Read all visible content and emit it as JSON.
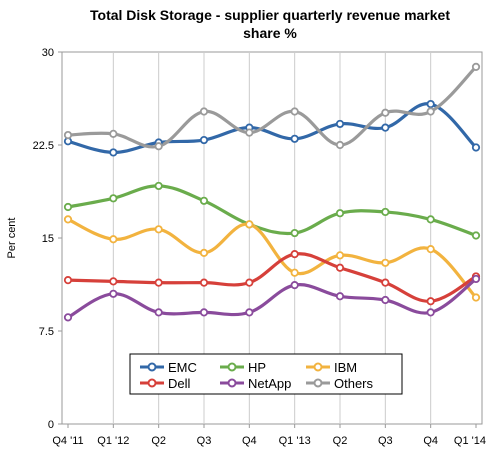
{
  "title_line_1": "Total Disk Storage - supplier quarterly revenue market",
  "title_line_2": "share %",
  "chart_data": {
    "type": "line",
    "title": "Total Disk Storage - supplier quarterly revenue market share %",
    "ylabel": "Per cent",
    "xlabel": "",
    "categories": [
      "Q4 '11",
      "Q1 '12",
      "Q2",
      "Q3",
      "Q4",
      "Q1 '13",
      "Q2",
      "Q3",
      "Q4",
      "Q1 '14"
    ],
    "ylim": [
      0,
      30
    ],
    "yticks": [
      0,
      7.5,
      15,
      22.5,
      30
    ],
    "ytick_labels": [
      "0",
      "7.5",
      "15",
      "22.5",
      "30"
    ],
    "grid": "vertical",
    "legend_placement": "bottom-center",
    "series": [
      {
        "name": "EMC",
        "color": "#3268a8",
        "values": [
          22.8,
          21.9,
          22.7,
          22.9,
          23.9,
          23.0,
          24.2,
          23.9,
          25.8,
          22.3
        ]
      },
      {
        "name": "HP",
        "color": "#6aac4c",
        "values": [
          17.5,
          18.2,
          19.2,
          18.0,
          16.1,
          15.4,
          17.0,
          17.1,
          16.5,
          15.2
        ]
      },
      {
        "name": "IBM",
        "color": "#f2b33f",
        "values": [
          16.5,
          14.9,
          15.7,
          13.8,
          16.1,
          12.2,
          13.6,
          13.0,
          14.1,
          10.2
        ]
      },
      {
        "name": "Dell",
        "color": "#d6403a",
        "values": [
          11.6,
          11.5,
          11.4,
          11.4,
          11.4,
          13.7,
          12.6,
          11.4,
          9.9,
          11.9
        ]
      },
      {
        "name": "NetApp",
        "color": "#8a4b9c",
        "values": [
          8.6,
          10.5,
          9.0,
          9.0,
          9.0,
          11.2,
          10.3,
          10.0,
          9.0,
          11.7
        ]
      },
      {
        "name": "Others",
        "color": "#9a9a9a",
        "values": [
          23.3,
          23.4,
          22.4,
          25.2,
          23.5,
          25.2,
          22.5,
          25.1,
          25.2,
          28.8
        ]
      }
    ],
    "legend_rows": [
      [
        "EMC",
        "HP",
        "IBM"
      ],
      [
        "Dell",
        "NetApp",
        "Others"
      ]
    ]
  }
}
